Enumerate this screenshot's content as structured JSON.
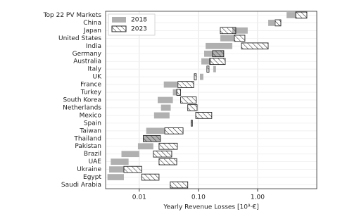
{
  "chart_data": {
    "type": "floating-barh",
    "xlabel": "Yearly Revenue Losses [10⁹·€]",
    "categories": [
      "Top 22 PV Markets",
      "China",
      "Japan",
      "United States",
      "India",
      "Germany",
      "Australia",
      "Italy",
      "UK",
      "France",
      "Turkey",
      "South Korea",
      "Netherlands",
      "Mexico",
      "Spain",
      "Taiwan",
      "Thailand",
      "Pakistan",
      "Brazil",
      "UAE",
      "Ukraine",
      "Egypt",
      "Saudi Arabia"
    ],
    "series": [
      {
        "name": "2018",
        "color": "#b0b0b0",
        "hatch": false,
        "values": [
          [
            3.08,
            4.4
          ],
          [
            1.51,
            1.93
          ],
          [
            0.373,
            0.68
          ],
          [
            0.234,
            0.405
          ],
          [
            0.132,
            0.373
          ],
          [
            0.125,
            0.268
          ],
          [
            0.112,
            0.164
          ],
          [
            0.178,
            0.198
          ],
          [
            0.106,
            0.121
          ],
          [
            0.026,
            0.044
          ],
          [
            0.037,
            0.044
          ],
          [
            0.0205,
            0.037
          ],
          [
            0.0233,
            0.034
          ],
          [
            0.0178,
            0.0325
          ],
          [
            0.074,
            0.076
          ],
          [
            0.0131,
            0.027
          ],
          [
            0.0117,
            0.0228
          ],
          [
            0.0095,
            0.0173
          ],
          [
            0.005,
            0.01
          ],
          [
            0.0033,
            0.0066
          ],
          [
            0.0031,
            0.0055
          ],
          [
            0.0029,
            0.0055
          ],
          null
        ]
      },
      {
        "name": "2023",
        "color": "#222222",
        "hatch": true,
        "values": [
          [
            4.4,
            6.8
          ],
          [
            1.98,
            2.47
          ],
          [
            0.234,
            0.428
          ],
          [
            0.405,
            0.61
          ],
          [
            0.532,
            1.51
          ],
          [
            0.173,
            0.268
          ],
          [
            0.155,
            0.284
          ],
          [
            0.139,
            0.151
          ],
          [
            0.085,
            0.092
          ],
          [
            0.045,
            0.083
          ],
          [
            0.043,
            0.05
          ],
          [
            0.05,
            0.092
          ],
          [
            0.066,
            0.095
          ],
          [
            0.09,
            0.168
          ],
          [
            0.076,
            0.079
          ],
          [
            0.027,
            0.055
          ],
          [
            0.0117,
            0.0228
          ],
          [
            0.0216,
            0.044
          ],
          [
            0.0173,
            0.0354
          ],
          [
            0.0216,
            0.043
          ],
          [
            0.0055,
            0.011
          ],
          [
            0.011,
            0.0216
          ],
          [
            0.0334,
            0.066
          ]
        ]
      }
    ],
    "xscale": "log",
    "xlim": [
      0.0027,
      10
    ],
    "xticks": [
      {
        "value": 0.01,
        "label": "0.01"
      },
      {
        "value": 0.1,
        "label": "0.10"
      },
      {
        "value": 1,
        "label": "1.00"
      }
    ],
    "grid": true,
    "legend": "upper-left"
  }
}
